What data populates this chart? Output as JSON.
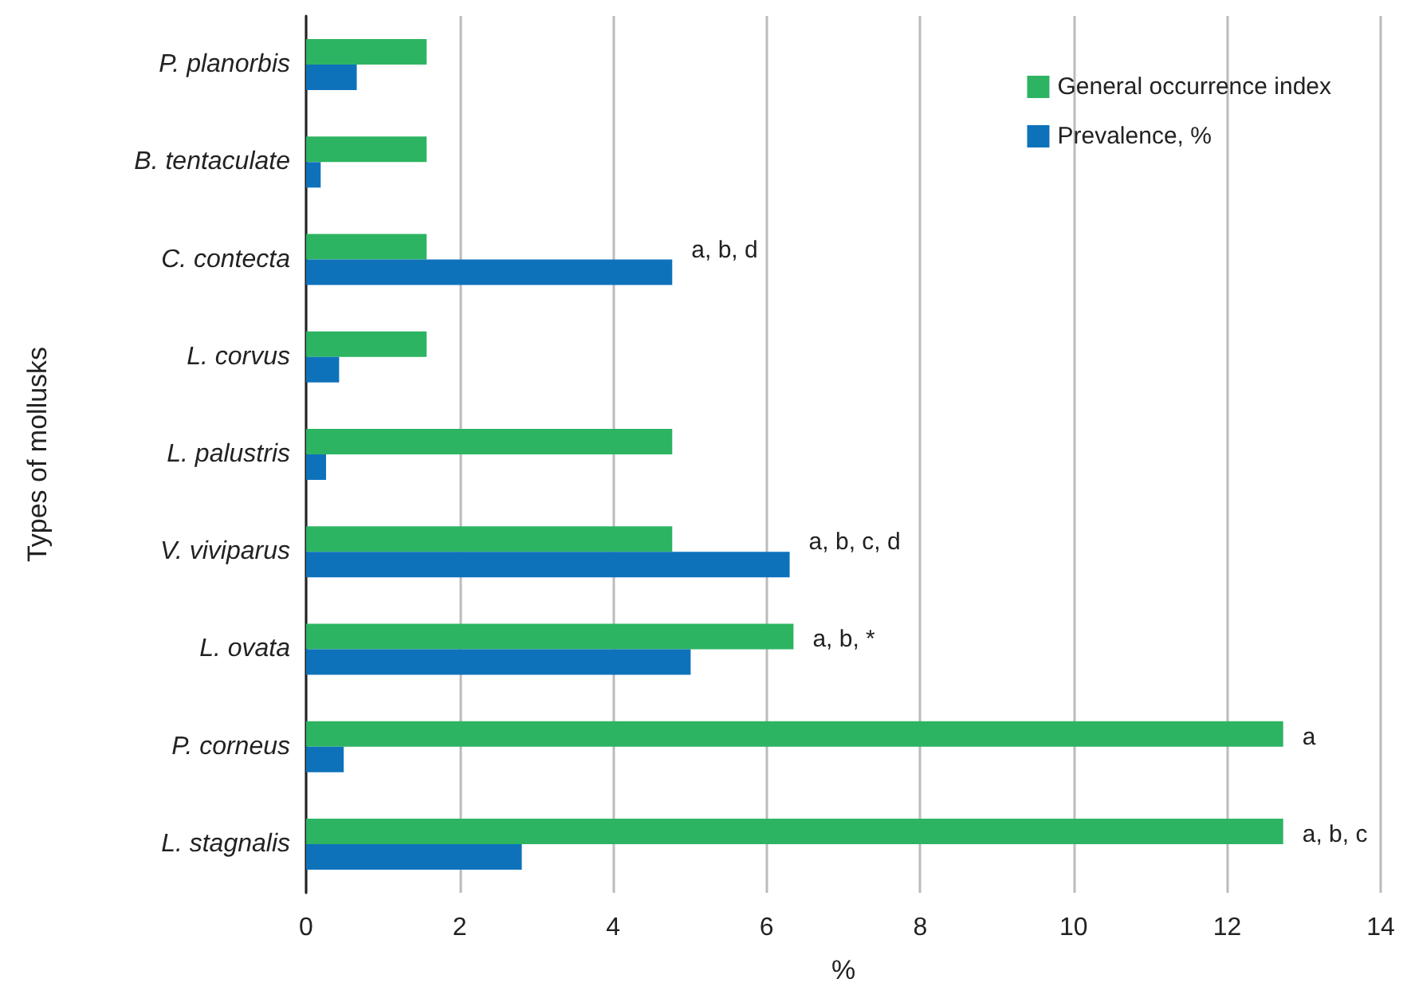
{
  "chart_data": {
    "type": "bar",
    "orientation": "horizontal",
    "xlabel": "%",
    "ylabel": "Types of mollusks",
    "categories": [
      "P. planorbis",
      "B. tentaculate",
      "C. contecta",
      "L. corvus",
      "L. palustris",
      "V. viviparus",
      "L. ovata",
      "P. corneus",
      "L. stagnalis"
    ],
    "series": [
      {
        "name": "General occurrence index",
        "color": "#2db462",
        "values": [
          1.57,
          1.57,
          1.57,
          1.57,
          4.77,
          4.77,
          6.35,
          12.73,
          12.73
        ]
      },
      {
        "name": "Prevalence, %",
        "color": "#0e72bb",
        "values": [
          0.66,
          0.19,
          4.77,
          0.43,
          0.26,
          6.3,
          5.01,
          0.49,
          2.81
        ]
      }
    ],
    "xlim": [
      0,
      14
    ],
    "xticks": [
      0,
      2,
      4,
      6,
      8,
      10,
      12,
      14
    ],
    "grid": "x",
    "legend": "top right",
    "annotations": [
      {
        "text": "a, b, d",
        "x": 4.77,
        "y": "C. contecta"
      },
      {
        "text": "a, b, c, d",
        "x": 6.3,
        "y": "V. viviparus"
      },
      {
        "text": "a, b, *",
        "x": 6.35,
        "y": "L. ovata"
      },
      {
        "text": "a",
        "x": 12.73,
        "y": "P. corneus"
      },
      {
        "text": "a, b, c",
        "x": 12.73,
        "y": "L. stagnalis"
      }
    ]
  }
}
